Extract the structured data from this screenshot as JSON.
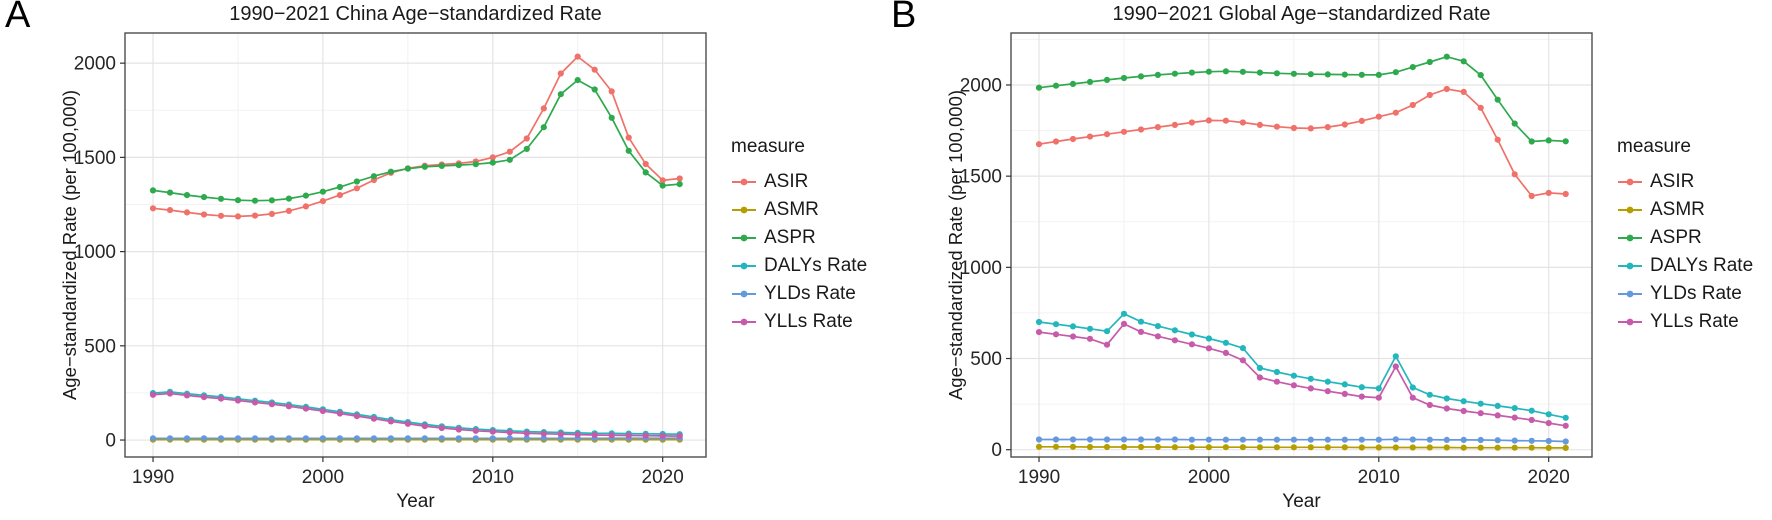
{
  "figure": {
    "panel_a_label": "A",
    "panel_b_label": "B"
  },
  "chart_data": [
    {
      "type": "line",
      "panel": "A",
      "title": "1990−2021 China Age−standardized Rate",
      "xlabel": "Year",
      "ylabel": "Age−standardized Rate (per 100,000)",
      "legend_title": "measure",
      "legend_position": "right",
      "grid": true,
      "x_ticks": [
        1990,
        2000,
        2010,
        2020
      ],
      "x_minor_ticks": [
        1995,
        2005,
        2015
      ],
      "y_ticks": [
        0,
        500,
        1000,
        1500,
        2000
      ],
      "y_minor_ticks": [
        250,
        750,
        1250,
        1750
      ],
      "xlim": [
        1988.35,
        2022.55
      ],
      "ylim": [
        -90,
        2160
      ],
      "x": [
        1990,
        1991,
        1992,
        1993,
        1994,
        1995,
        1996,
        1997,
        1998,
        1999,
        2000,
        2001,
        2002,
        2003,
        2004,
        2005,
        2006,
        2007,
        2008,
        2009,
        2010,
        2011,
        2012,
        2013,
        2014,
        2015,
        2016,
        2017,
        2018,
        2019,
        2020,
        2021
      ],
      "series": [
        {
          "name": "ASIR",
          "color": "#F0716A",
          "values": [
            1230,
            1220,
            1208,
            1197,
            1190,
            1187,
            1191,
            1200,
            1216,
            1240,
            1268,
            1300,
            1336,
            1380,
            1418,
            1442,
            1456,
            1462,
            1468,
            1478,
            1500,
            1530,
            1600,
            1760,
            1945,
            2035,
            1965,
            1850,
            1605,
            1465,
            1378,
            1388
          ]
        },
        {
          "name": "ASMR",
          "color": "#B59E00",
          "values": [
            2,
            2,
            2,
            2,
            2,
            2,
            2,
            2,
            2,
            2,
            2,
            2,
            2,
            2,
            2,
            2,
            2,
            2,
            2,
            2,
            2,
            2,
            2,
            2,
            2,
            2,
            2,
            2,
            2,
            2,
            2,
            2
          ]
        },
        {
          "name": "ASPR",
          "color": "#2EA94E",
          "values": [
            1325,
            1313,
            1300,
            1289,
            1280,
            1273,
            1270,
            1272,
            1281,
            1297,
            1318,
            1343,
            1372,
            1400,
            1424,
            1440,
            1450,
            1455,
            1459,
            1464,
            1472,
            1487,
            1545,
            1660,
            1835,
            1910,
            1860,
            1710,
            1535,
            1420,
            1350,
            1358
          ]
        },
        {
          "name": "DALYs Rate",
          "color": "#23B6BD",
          "values": [
            249,
            256,
            246,
            237,
            229,
            219,
            209,
            199,
            188,
            176,
            163,
            150,
            136,
            122,
            108,
            95,
            83,
            73,
            65,
            58,
            53,
            49,
            45,
            42,
            40,
            38,
            36,
            35,
            34,
            33,
            32,
            31
          ]
        },
        {
          "name": "YLDs Rate",
          "color": "#6699DC",
          "values": [
            9,
            9,
            9,
            9,
            9,
            9,
            9,
            9,
            9,
            9,
            9,
            9,
            9,
            9,
            9,
            9,
            9,
            9,
            9,
            9,
            9,
            9,
            9,
            9,
            9,
            9,
            9,
            10,
            10,
            10,
            10,
            10
          ]
        },
        {
          "name": "YLLs Rate",
          "color": "#C65BA9",
          "values": [
            240,
            247,
            237,
            228,
            220,
            210,
            200,
            190,
            179,
            167,
            154,
            141,
            127,
            113,
            99,
            86,
            74,
            64,
            56,
            49,
            44,
            40,
            36,
            33,
            31,
            29,
            27,
            25,
            24,
            23,
            22,
            21
          ]
        }
      ]
    },
    {
      "type": "line",
      "panel": "B",
      "title": "1990−2021 Global Age−standardized Rate",
      "xlabel": "Year",
      "ylabel": "Age−standardized Rate (per 100,000)",
      "legend_title": "measure",
      "legend_position": "right",
      "grid": true,
      "x_ticks": [
        1990,
        2000,
        2010,
        2020
      ],
      "x_minor_ticks": [
        1995,
        2005,
        2015
      ],
      "y_ticks": [
        0,
        500,
        1000,
        1500,
        2000
      ],
      "y_minor_ticks": [
        250,
        750,
        1250,
        1750,
        2250
      ],
      "xlim": [
        1988.35,
        2022.55
      ],
      "ylim": [
        -40,
        2285
      ],
      "x": [
        1990,
        1991,
        1992,
        1993,
        1994,
        1995,
        1996,
        1997,
        1998,
        1999,
        2000,
        2001,
        2002,
        2003,
        2004,
        2005,
        2006,
        2007,
        2008,
        2009,
        2010,
        2011,
        2012,
        2013,
        2014,
        2015,
        2016,
        2017,
        2018,
        2019,
        2020,
        2021
      ],
      "series": [
        {
          "name": "ASIR",
          "color": "#F0716A",
          "values": [
            1675,
            1690,
            1704,
            1717,
            1730,
            1743,
            1756,
            1769,
            1781,
            1794,
            1806,
            1804,
            1794,
            1781,
            1771,
            1764,
            1762,
            1769,
            1783,
            1803,
            1826,
            1848,
            1890,
            1945,
            1978,
            1962,
            1875,
            1700,
            1510,
            1391,
            1408,
            1402
          ]
        },
        {
          "name": "ASMR",
          "color": "#B59E00",
          "values": [
            16,
            16,
            16,
            15,
            15,
            15,
            15,
            15,
            14,
            14,
            14,
            14,
            14,
            13,
            13,
            13,
            13,
            13,
            13,
            12,
            12,
            12,
            12,
            12,
            12,
            11,
            11,
            11,
            11,
            11,
            10,
            10
          ]
        },
        {
          "name": "ASPR",
          "color": "#2EA94E",
          "values": [
            1985,
            1996,
            2006,
            2017,
            2028,
            2038,
            2047,
            2055,
            2062,
            2068,
            2073,
            2075,
            2072,
            2068,
            2064,
            2061,
            2059,
            2058,
            2057,
            2056,
            2055,
            2070,
            2098,
            2126,
            2155,
            2130,
            2054,
            1919,
            1788,
            1690,
            1696,
            1691
          ]
        },
        {
          "name": "DALYs Rate",
          "color": "#23B6BD",
          "values": [
            700,
            688,
            676,
            663,
            650,
            745,
            702,
            678,
            655,
            632,
            610,
            586,
            557,
            448,
            426,
            406,
            389,
            373,
            358,
            343,
            336,
            512,
            341,
            301,
            281,
            266,
            252,
            240,
            228,
            214,
            194,
            175
          ]
        },
        {
          "name": "YLDs Rate",
          "color": "#6699DC",
          "values": [
            56,
            56,
            56,
            56,
            56,
            56,
            56,
            56,
            56,
            55,
            55,
            55,
            55,
            55,
            55,
            55,
            55,
            55,
            55,
            55,
            55,
            57,
            56,
            55,
            54,
            54,
            53,
            52,
            50,
            49,
            48,
            45
          ]
        },
        {
          "name": "YLLs Rate",
          "color": "#C65BA9",
          "values": [
            645,
            633,
            621,
            608,
            576,
            690,
            646,
            622,
            600,
            578,
            556,
            531,
            490,
            396,
            373,
            353,
            336,
            321,
            306,
            291,
            285,
            456,
            285,
            245,
            226,
            212,
            200,
            188,
            176,
            163,
            146,
            131
          ]
        }
      ]
    }
  ]
}
